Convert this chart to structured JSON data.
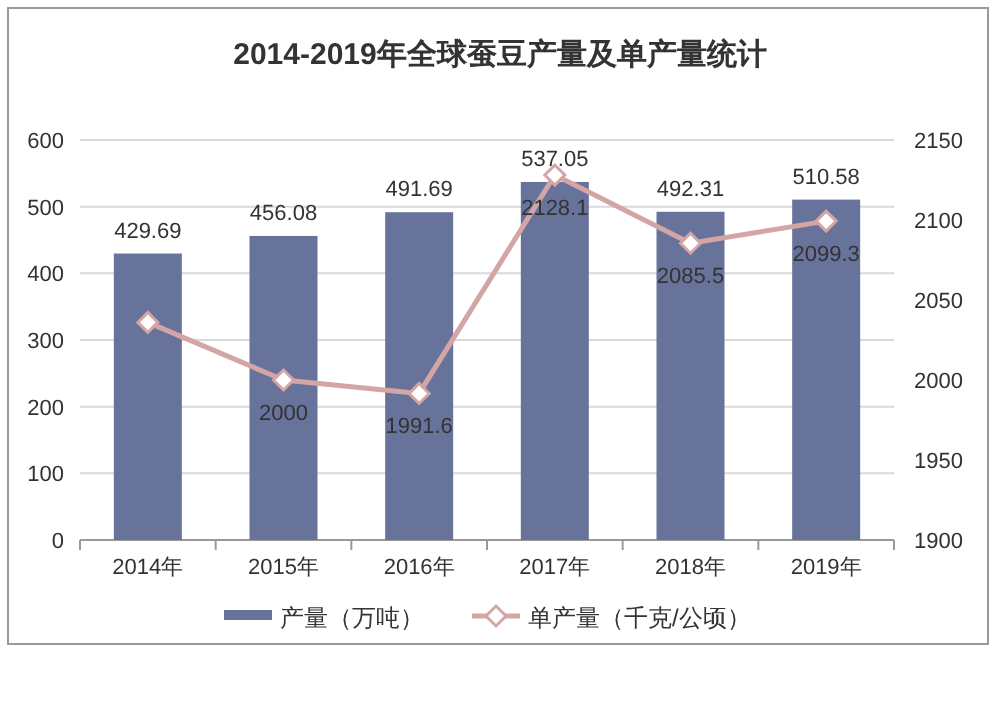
{
  "chart_data": {
    "type": "bar",
    "title": "2014-2019年全球蚕豆产量及单产量统计",
    "categories": [
      "2014年",
      "2015年",
      "2016年",
      "2017年",
      "2018年",
      "2019年"
    ],
    "series": [
      {
        "name": "产量（万吨）",
        "color": "#68739b",
        "values": [
          429.69,
          456.08,
          491.69,
          537.05,
          492.31,
          510.58
        ],
        "value_labels": [
          "429.69",
          "456.08",
          "491.69",
          "537.05",
          "492.31",
          "510.58"
        ]
      },
      {
        "name": "单产量（千克/公顷）",
        "type": "line",
        "axis": "y2",
        "color": "#d4a5a5",
        "marker": "diamond",
        "values": [
          2036,
          2000,
          1991.6,
          2128.1,
          2085.5,
          2099.3
        ],
        "value_labels": [
          null,
          "2000",
          "1991.6",
          "2128.1",
          "2085.5",
          "2099.3"
        ]
      }
    ],
    "ylim": [
      0,
      600
    ],
    "yticks": [
      0,
      100,
      200,
      300,
      400,
      500,
      600
    ],
    "y2lim": [
      1900,
      2150
    ],
    "y2ticks": [
      1900,
      1950,
      2000,
      2050,
      2100,
      2150
    ],
    "grid": "y",
    "legend": "bottom"
  }
}
